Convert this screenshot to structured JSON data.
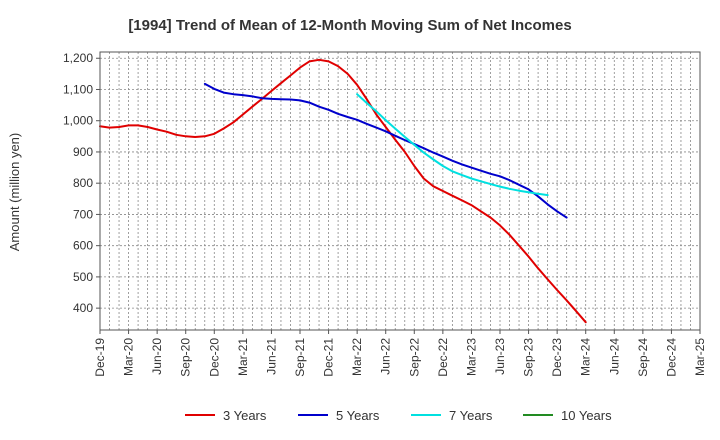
{
  "chart_data": {
    "type": "line",
    "title": "[1994]  Trend of Mean of 12-Month Moving Sum of Net Incomes",
    "xlabel": "",
    "ylabel": "Amount (million yen)",
    "ylim": [
      330,
      1220
    ],
    "yticks": [
      400,
      500,
      600,
      700,
      800,
      900,
      1000,
      1100,
      1200
    ],
    "ytick_labels": [
      "400",
      "500",
      "600",
      "700",
      "800",
      "900",
      "1,000",
      "1,100",
      "1,200"
    ],
    "categories": [
      "Dec-19",
      "Mar-20",
      "Jun-20",
      "Sep-20",
      "Dec-20",
      "Mar-21",
      "Jun-21",
      "Sep-21",
      "Dec-21",
      "Mar-22",
      "Jun-22",
      "Sep-22",
      "Dec-22",
      "Mar-23",
      "Jun-23",
      "Sep-23",
      "Dec-23",
      "Mar-24",
      "Jun-24",
      "Sep-24",
      "Dec-24",
      "Mar-25"
    ],
    "grid": true,
    "legend_position": "bottom",
    "series": [
      {
        "name": "3 Years",
        "color": "#e00000",
        "points": [
          [
            0,
            982
          ],
          [
            0.33,
            978
          ],
          [
            0.67,
            980
          ],
          [
            1,
            985
          ],
          [
            1.33,
            985
          ],
          [
            1.67,
            980
          ],
          [
            2,
            972
          ],
          [
            2.33,
            965
          ],
          [
            2.67,
            955
          ],
          [
            3,
            950
          ],
          [
            3.33,
            948
          ],
          [
            3.67,
            950
          ],
          [
            4,
            958
          ],
          [
            4.33,
            975
          ],
          [
            4.67,
            995
          ],
          [
            5,
            1020
          ],
          [
            5.33,
            1045
          ],
          [
            5.67,
            1070
          ],
          [
            6,
            1095
          ],
          [
            6.33,
            1120
          ],
          [
            6.67,
            1145
          ],
          [
            7,
            1170
          ],
          [
            7.33,
            1190
          ],
          [
            7.67,
            1195
          ],
          [
            8,
            1190
          ],
          [
            8.33,
            1175
          ],
          [
            8.67,
            1150
          ],
          [
            9,
            1115
          ],
          [
            9.33,
            1070
          ],
          [
            9.67,
            1020
          ],
          [
            10,
            980
          ],
          [
            10.33,
            940
          ],
          [
            10.67,
            900
          ],
          [
            11,
            855
          ],
          [
            11.33,
            815
          ],
          [
            11.67,
            790
          ],
          [
            12,
            775
          ],
          [
            12.33,
            760
          ],
          [
            12.67,
            745
          ],
          [
            13,
            730
          ],
          [
            13.33,
            710
          ],
          [
            13.67,
            690
          ],
          [
            14,
            665
          ],
          [
            14.33,
            635
          ],
          [
            14.67,
            600
          ],
          [
            15,
            565
          ],
          [
            15.33,
            528
          ],
          [
            15.67,
            492
          ],
          [
            16,
            458
          ],
          [
            16.33,
            425
          ],
          [
            16.67,
            390
          ],
          [
            17,
            355
          ]
        ]
      },
      {
        "name": "5 Years",
        "color": "#0000cc",
        "points": [
          [
            3.67,
            1118
          ],
          [
            4,
            1102
          ],
          [
            4.33,
            1090
          ],
          [
            4.67,
            1085
          ],
          [
            5,
            1082
          ],
          [
            5.33,
            1078
          ],
          [
            5.67,
            1072
          ],
          [
            6,
            1070
          ],
          [
            6.33,
            1069
          ],
          [
            6.67,
            1068
          ],
          [
            7,
            1065
          ],
          [
            7.33,
            1058
          ],
          [
            7.67,
            1045
          ],
          [
            8,
            1035
          ],
          [
            8.33,
            1022
          ],
          [
            8.67,
            1012
          ],
          [
            9,
            1003
          ],
          [
            9.33,
            990
          ],
          [
            9.67,
            978
          ],
          [
            10,
            966
          ],
          [
            10.33,
            952
          ],
          [
            10.67,
            938
          ],
          [
            11,
            925
          ],
          [
            11.33,
            912
          ],
          [
            11.67,
            898
          ],
          [
            12,
            885
          ],
          [
            12.33,
            872
          ],
          [
            12.67,
            860
          ],
          [
            13,
            850
          ],
          [
            13.33,
            840
          ],
          [
            13.67,
            830
          ],
          [
            14,
            822
          ],
          [
            14.33,
            810
          ],
          [
            14.67,
            795
          ],
          [
            15,
            780
          ],
          [
            15.33,
            758
          ],
          [
            15.67,
            732
          ],
          [
            16,
            710
          ],
          [
            16.33,
            690
          ]
        ]
      },
      {
        "name": "7 Years",
        "color": "#00e0e0",
        "points": [
          [
            9,
            1085
          ],
          [
            9.33,
            1057
          ],
          [
            9.67,
            1030
          ],
          [
            10,
            1002
          ],
          [
            10.33,
            975
          ],
          [
            10.67,
            948
          ],
          [
            11,
            923
          ],
          [
            11.33,
            898
          ],
          [
            11.67,
            876
          ],
          [
            12,
            855
          ],
          [
            12.33,
            838
          ],
          [
            12.67,
            826
          ],
          [
            13,
            815
          ],
          [
            13.33,
            806
          ],
          [
            13.67,
            797
          ],
          [
            14,
            789
          ],
          [
            14.33,
            782
          ],
          [
            14.67,
            776
          ],
          [
            15,
            771
          ],
          [
            15.33,
            766
          ],
          [
            15.67,
            762
          ]
        ]
      },
      {
        "name": "10 Years",
        "color": "#228b22",
        "points": []
      }
    ]
  }
}
